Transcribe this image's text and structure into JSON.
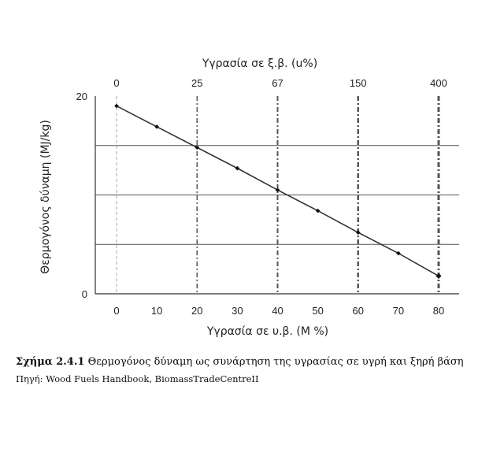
{
  "chart_data": {
    "type": "line",
    "x": [
      0,
      10,
      20,
      30,
      40,
      50,
      60,
      70,
      80
    ],
    "values": [
      19,
      16.9,
      14.8,
      12.7,
      10.5,
      8.4,
      6.2,
      4.1,
      1.8
    ],
    "xlabel": "Υγρασία σε υ.β. (Μ %)",
    "ylabel": "Θερμογόνος δύναμη (MJ/kg)",
    "x2label": "Υγρασία σε ξ.β. (u%)",
    "xlim": [
      0,
      80
    ],
    "ylim": [
      0,
      20
    ],
    "x_ticks": [
      "0",
      "10",
      "20",
      "30",
      "40",
      "50",
      "60",
      "70",
      "80"
    ],
    "y_ticks": [
      "0",
      "20"
    ],
    "top_ticks": [
      {
        "label": "0",
        "at": 0
      },
      {
        "label": "25",
        "at": 20
      },
      {
        "label": "67",
        "at": 40
      },
      {
        "label": "150",
        "at": 60
      },
      {
        "label": "400",
        "at": 80
      }
    ],
    "grid": true,
    "line_color": "#333333"
  },
  "caption": {
    "figure_number": "Σχήμα 2.4.1",
    "text": "Θερμογόνος δύναμη ως συνάρτηση της υγρασίας σε υγρή και ξηρή βάση"
  },
  "source": "Πηγή: Wood Fuels Handbook, BiomassTradeCentreII"
}
